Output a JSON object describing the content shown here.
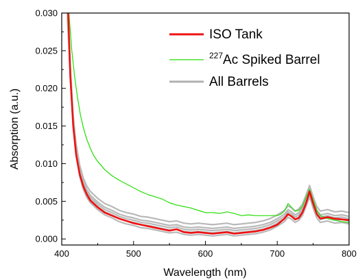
{
  "chart_data": {
    "type": "line",
    "xlabel": "Wavelength (nm)",
    "ylabel": "Absorption (a.u.)",
    "xlim": [
      400,
      800
    ],
    "ylim": [
      -0.0008,
      0.03
    ],
    "xticks": [
      400,
      500,
      600,
      700,
      800
    ],
    "xtick_labels": [
      "400",
      "500",
      "600",
      "700",
      "800"
    ],
    "yticks": [
      0.0,
      0.005,
      0.01,
      0.015,
      0.02,
      0.025,
      0.03
    ],
    "ytick_labels": [
      "0.000",
      "0.005",
      "0.010",
      "0.015",
      "0.020",
      "0.025",
      "0.030"
    ],
    "grid": false,
    "legend_position": "top-right",
    "legend": [
      {
        "label_main": "ISO Tank",
        "label_sup": "",
        "color": "#ee1111",
        "width": 3.0
      },
      {
        "label_main": "Ac Spiked Barrel",
        "label_sup": "227",
        "color": "#22dd00",
        "width": 1.2
      },
      {
        "label_main": "All Barrels",
        "label_sup": "",
        "color": "#b0b0b0",
        "width": 3.0
      }
    ],
    "series": [
      {
        "name": "All Barrels",
        "color": "#b8b8b8",
        "width": 2.2,
        "x": [
          408,
          412,
          416,
          420,
          425,
          430,
          435,
          440,
          450,
          460,
          470,
          480,
          490,
          500,
          510,
          520,
          530,
          540,
          550,
          560,
          570,
          580,
          590,
          600,
          610,
          620,
          630,
          640,
          650,
          660,
          670,
          680,
          690,
          700,
          710,
          715,
          720,
          725,
          730,
          735,
          740,
          745,
          750,
          755,
          760,
          770,
          780,
          790,
          800
        ],
        "values": [
          0.03,
          0.022,
          0.0155,
          0.0118,
          0.009,
          0.0073,
          0.0062,
          0.0055,
          0.0046,
          0.0039,
          0.0035,
          0.003,
          0.0027,
          0.0025,
          0.0022,
          0.0021,
          0.0019,
          0.0017,
          0.0015,
          0.0016,
          0.0013,
          0.0012,
          0.0013,
          0.0012,
          0.0011,
          0.0012,
          0.0013,
          0.0011,
          0.0012,
          0.0013,
          0.0014,
          0.0016,
          0.0019,
          0.0024,
          0.003,
          0.0036,
          0.0033,
          0.0029,
          0.0032,
          0.0038,
          0.005,
          0.0063,
          0.0048,
          0.0035,
          0.0029,
          0.0031,
          0.0028,
          0.0029,
          0.0027
        ],
        "band_offsets": [
          0.0008,
          0.0003,
          -0.0003,
          -0.0007
        ]
      },
      {
        "name": "Ac Spiked Barrel",
        "color": "#22dd00",
        "width": 1.2,
        "x": [
          410,
          414,
          418,
          422,
          426,
          430,
          435,
          440,
          445,
          450,
          460,
          470,
          480,
          490,
          500,
          510,
          520,
          530,
          540,
          550,
          560,
          570,
          580,
          590,
          600,
          610,
          620,
          630,
          640,
          650,
          660,
          670,
          680,
          690,
          700,
          705,
          710,
          715,
          720,
          725,
          730,
          735,
          740,
          745,
          750,
          755,
          760,
          770,
          780,
          790,
          800
        ],
        "values": [
          0.03,
          0.025,
          0.0215,
          0.0188,
          0.0165,
          0.0148,
          0.0132,
          0.012,
          0.011,
          0.0103,
          0.0092,
          0.0084,
          0.0078,
          0.0073,
          0.0068,
          0.0063,
          0.0059,
          0.0056,
          0.0053,
          0.0048,
          0.0045,
          0.0043,
          0.0041,
          0.0038,
          0.0035,
          0.0035,
          0.0034,
          0.0036,
          0.0034,
          0.0031,
          0.0032,
          0.0031,
          0.0031,
          0.0031,
          0.0031,
          0.0033,
          0.0037,
          0.0047,
          0.0042,
          0.0037,
          0.0038,
          0.0043,
          0.0055,
          0.0066,
          0.0052,
          0.0038,
          0.0031,
          0.0027,
          0.0025,
          0.0023,
          0.0022
        ]
      },
      {
        "name": "ISO Tank",
        "color": "#ee1111",
        "width": 2.6,
        "x": [
          409,
          412,
          416,
          420,
          425,
          430,
          435,
          440,
          450,
          460,
          470,
          480,
          490,
          500,
          510,
          520,
          530,
          540,
          550,
          560,
          570,
          580,
          590,
          600,
          610,
          620,
          630,
          640,
          650,
          660,
          670,
          680,
          690,
          700,
          705,
          710,
          715,
          720,
          725,
          730,
          735,
          740,
          745,
          750,
          755,
          760,
          770,
          780,
          790,
          800
        ],
        "values": [
          0.03,
          0.0215,
          0.015,
          0.0112,
          0.0086,
          0.007,
          0.0059,
          0.0051,
          0.0042,
          0.0035,
          0.0031,
          0.0027,
          0.0024,
          0.0021,
          0.0019,
          0.0017,
          0.0015,
          0.0013,
          0.0011,
          0.0013,
          0.0009,
          0.0008,
          0.0009,
          0.0008,
          0.0007,
          0.0008,
          0.0009,
          0.0007,
          0.0008,
          0.0009,
          0.001,
          0.0012,
          0.0015,
          0.0019,
          0.0023,
          0.0027,
          0.0033,
          0.003,
          0.0026,
          0.0028,
          0.0035,
          0.0047,
          0.0063,
          0.0047,
          0.0033,
          0.0027,
          0.0029,
          0.0027,
          0.0026,
          0.0025
        ]
      }
    ]
  }
}
